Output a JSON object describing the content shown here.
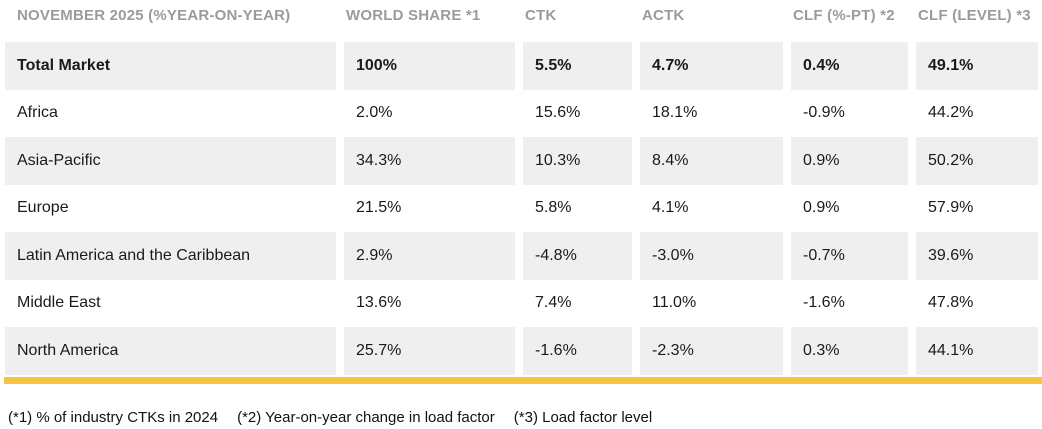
{
  "chart_data": {
    "type": "table",
    "title": "NOVEMBER 2025 (%YEAR-ON-YEAR)",
    "columns": [
      "WORLD SHARE *1",
      "CTK",
      "ACTK",
      "CLF (%-PT) *2",
      "CLF (LEVEL) *3"
    ],
    "rows": [
      {
        "region": "Total Market",
        "values": [
          "100%",
          "5.5%",
          "4.7%",
          "0.4%",
          "49.1%"
        ]
      },
      {
        "region": "Africa",
        "values": [
          "2.0%",
          "15.6%",
          "18.1%",
          "-0.9%",
          "44.2%"
        ]
      },
      {
        "region": "Asia-Pacific",
        "values": [
          "34.3%",
          "10.3%",
          "8.4%",
          "0.9%",
          "50.2%"
        ]
      },
      {
        "region": "Europe",
        "values": [
          "21.5%",
          "5.8%",
          "4.1%",
          "0.9%",
          "57.9%"
        ]
      },
      {
        "region": "Latin America and the Caribbean",
        "values": [
          "2.9%",
          "-4.8%",
          "-3.0%",
          "-0.7%",
          "39.6%"
        ]
      },
      {
        "region": "Middle East",
        "values": [
          "13.6%",
          "7.4%",
          "11.0%",
          "-1.6%",
          "47.8%"
        ]
      },
      {
        "region": "North America",
        "values": [
          "25.7%",
          "-1.6%",
          "-2.3%",
          "0.3%",
          "44.1%"
        ]
      }
    ],
    "footnotes": [
      "(*1) % of industry CTKs in 2024",
      "(*2) Year-on-year change in load factor",
      "(*3) Load factor level"
    ],
    "layout": {
      "stripe_color": "#efefef",
      "accent_bar_color": "#f5c542",
      "header_text_color": "#9b9b9b",
      "body_text_color": "#1a1a1a"
    }
  }
}
